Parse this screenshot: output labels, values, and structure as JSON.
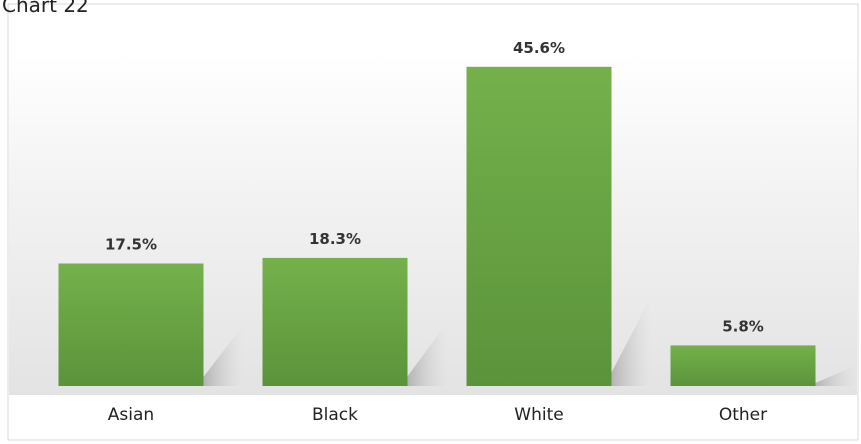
{
  "chart_data": {
    "type": "bar",
    "title": "Chart 22",
    "categories": [
      "Asian",
      "Black",
      "White",
      "Other"
    ],
    "values": [
      17.5,
      18.3,
      45.6,
      5.8
    ],
    "data_labels": [
      "17.5%",
      "18.3%",
      "45.6%",
      "5.8%"
    ],
    "xlabel": "",
    "ylabel": "",
    "ylim": [
      0,
      50
    ],
    "grid": false,
    "legend": "none",
    "colors": {
      "bar_top": "#72b04a",
      "bar_bottom": "#5a923a",
      "plot_top": "#ffffff",
      "plot_bottom": "#e6e6e6",
      "frame": "#d9d9d9"
    }
  }
}
